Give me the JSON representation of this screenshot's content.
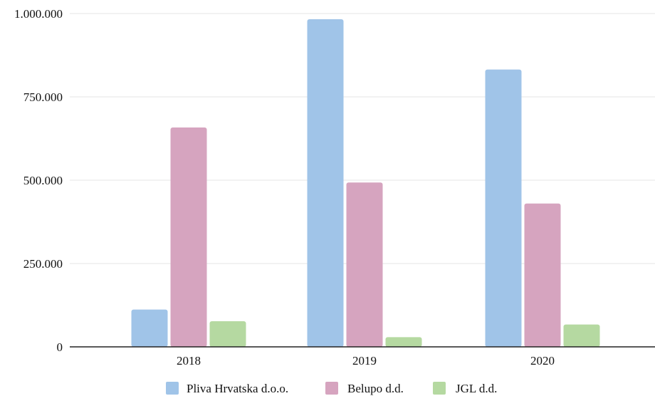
{
  "chart_data": {
    "type": "bar",
    "categories": [
      "2018",
      "2019",
      "2020"
    ],
    "series": [
      {
        "name": "Pliva Hrvatska d.o.o.",
        "color": "#a0c4e8",
        "values": [
          112000,
          983000,
          832000
        ]
      },
      {
        "name": "Belupo d.d.",
        "color": "#d6a4bf",
        "values": [
          658000,
          493000,
          430000
        ]
      },
      {
        "name": "JGL d.d.",
        "color": "#b5d9a1",
        "values": [
          77000,
          29000,
          67000
        ]
      }
    ],
    "y_ticks": [
      0,
      250000,
      500000,
      750000,
      1000000
    ],
    "y_tick_labels": [
      "0",
      "250.000",
      "500.000",
      "750.000",
      "1.000.000"
    ],
    "ylim": [
      0,
      1000000
    ],
    "grid": true,
    "legend_position": "bottom",
    "gridline_color": "#e6e6e6",
    "axis_color": "#222222"
  }
}
